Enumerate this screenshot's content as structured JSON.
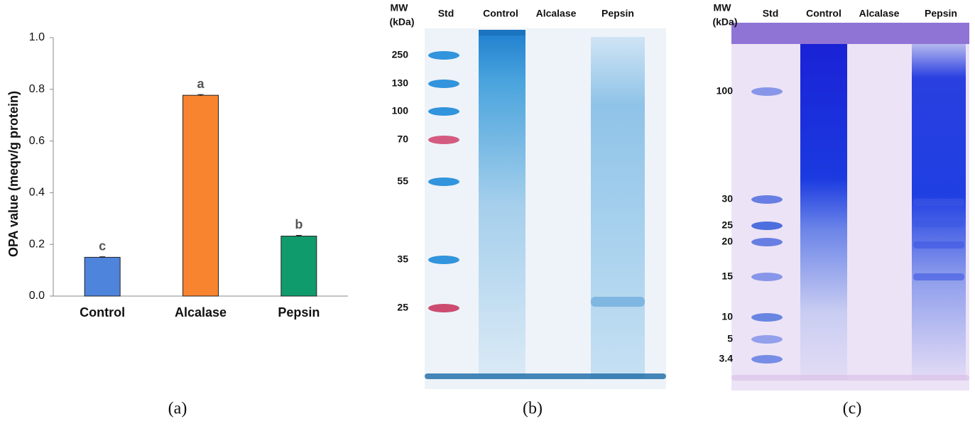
{
  "chart_data": {
    "type": "bar",
    "ylabel": "OPA  value (meqv/g protein)",
    "categories": [
      "Control",
      "Alcalase",
      "Pepsin"
    ],
    "values": [
      0.15,
      0.777,
      0.232
    ],
    "errors": [
      0.002,
      0.003,
      0.003
    ],
    "colors": [
      "#4f84dc",
      "#f8842f",
      "#0f9b6b"
    ],
    "annotations": [
      "c",
      "a",
      "b"
    ],
    "ylim": [
      0,
      1
    ],
    "yticks": [
      {
        "value": 0,
        "label": "0.0"
      },
      0.2,
      0.4,
      0.6,
      0.8,
      {
        "value": 1,
        "label": "1.0"
      }
    ],
    "panel_label": "(a)"
  },
  "gels": [
    {
      "mw_label": "MW",
      "unit_label": "(kDa)",
      "lanes": [
        "Std",
        "Control",
        "Alcalase",
        "Pepsin"
      ],
      "markers": [
        "250",
        "130",
        "100",
        "70",
        "55",
        "35",
        "25"
      ],
      "panel_label": "(b)"
    },
    {
      "mw_label": "MW",
      "unit_label": "(kDa)",
      "lanes": [
        "Std",
        "Control",
        "Alcalase",
        "Pepsin"
      ],
      "markers": [
        "100",
        "30",
        "25",
        "20",
        "15",
        "10",
        "5",
        "3.4"
      ],
      "panel_label": "(c)"
    }
  ]
}
